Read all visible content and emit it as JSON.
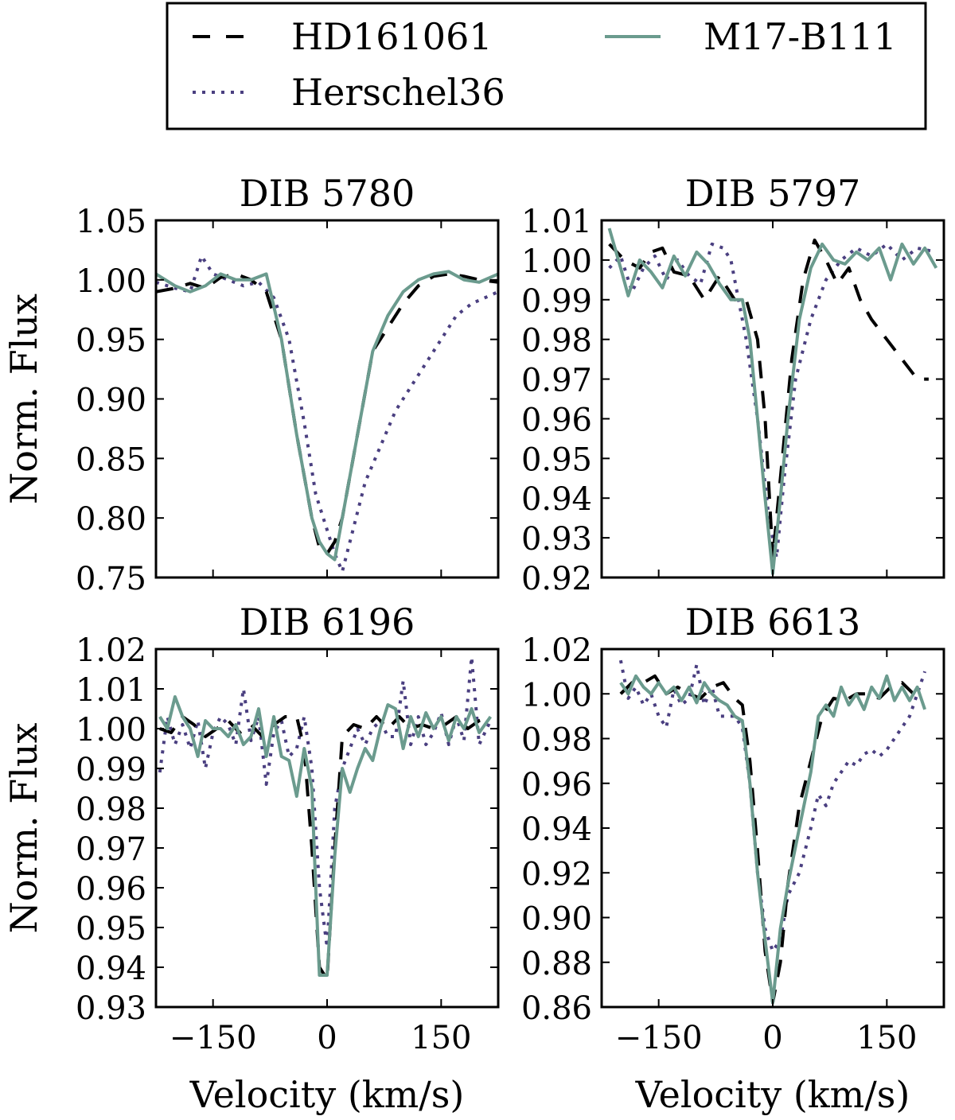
{
  "legend": {
    "entries": [
      {
        "label": "HD161061",
        "color": "#000000",
        "style": "dashed"
      },
      {
        "label": "M17-B111",
        "color": "#6b9b8e",
        "style": "solid"
      },
      {
        "label": "Herschel36",
        "color": "#4a3f80",
        "style": "dotted"
      }
    ]
  },
  "chart_data": [
    {
      "type": "line",
      "title": "DIB 5780",
      "ylabel": "Norm. Flux",
      "xlabel": "",
      "xlim": [
        -225,
        225
      ],
      "ylim": [
        0.75,
        1.05
      ],
      "xticks": [
        -150,
        0,
        150
      ],
      "show_xtick_labels": false,
      "yticks": [
        0.75,
        0.8,
        0.85,
        0.9,
        0.95,
        1.0,
        1.05
      ],
      "ytick_labels": [
        "0.75",
        "0.80",
        "0.85",
        "0.90",
        "0.95",
        "1.00",
        "1.05"
      ],
      "series": [
        {
          "name": "HD161061",
          "x": [
            -225,
            -200,
            -180,
            -160,
            -140,
            -120,
            -100,
            -80,
            -60,
            -40,
            -20,
            -10,
            0,
            10,
            20,
            40,
            60,
            80,
            100,
            120,
            140,
            160,
            180,
            200,
            225
          ],
          "y": [
            0.99,
            0.993,
            0.997,
            0.993,
            1.002,
            1.005,
            1.0,
            0.99,
            0.95,
            0.87,
            0.8,
            0.775,
            0.77,
            0.78,
            0.8,
            0.87,
            0.94,
            0.96,
            0.98,
            0.995,
            1.003,
            1.005,
            1.003,
            1.0,
            0.998
          ]
        },
        {
          "name": "M17-B111",
          "x": [
            -225,
            -200,
            -180,
            -160,
            -140,
            -120,
            -100,
            -80,
            -60,
            -40,
            -20,
            -10,
            0,
            10,
            20,
            40,
            60,
            80,
            100,
            120,
            140,
            160,
            180,
            200,
            225
          ],
          "y": [
            1.005,
            0.995,
            0.99,
            0.995,
            1.005,
            1.0,
            1.0,
            1.005,
            0.95,
            0.87,
            0.8,
            0.78,
            0.77,
            0.765,
            0.8,
            0.87,
            0.94,
            0.97,
            0.99,
            1.0,
            1.005,
            1.007,
            1.0,
            0.998,
            1.005
          ]
        },
        {
          "name": "Herschel36",
          "x": [
            -225,
            -200,
            -180,
            -165,
            -150,
            -130,
            -110,
            -90,
            -70,
            -50,
            -30,
            -15,
            0,
            10,
            20,
            30,
            50,
            70,
            90,
            110,
            130,
            150,
            170,
            190,
            225
          ],
          "y": [
            0.998,
            0.993,
            0.99,
            1.02,
            1.005,
            1.0,
            0.995,
            0.998,
            0.985,
            0.95,
            0.88,
            0.82,
            0.79,
            0.77,
            0.755,
            0.78,
            0.83,
            0.86,
            0.89,
            0.91,
            0.93,
            0.95,
            0.97,
            0.98,
            0.99
          ]
        }
      ]
    },
    {
      "type": "line",
      "title": "DIB 5797",
      "ylabel": "",
      "xlabel": "",
      "xlim": [
        -225,
        225
      ],
      "ylim": [
        0.92,
        1.01
      ],
      "xticks": [
        -150,
        0,
        150
      ],
      "show_xtick_labels": false,
      "yticks": [
        0.92,
        0.93,
        0.94,
        0.95,
        0.96,
        0.97,
        0.98,
        0.99,
        1.0,
        1.01
      ],
      "ytick_labels": [
        "0.92",
        "0.93",
        "0.94",
        "0.95",
        "0.96",
        "0.97",
        "0.98",
        "0.99",
        "1.00",
        "1.01"
      ],
      "series": [
        {
          "name": "HD161061",
          "x": [
            -215,
            -195,
            -175,
            -160,
            -145,
            -130,
            -110,
            -90,
            -70,
            -50,
            -35,
            -20,
            -10,
            0,
            10,
            25,
            40,
            55,
            70,
            85,
            100,
            115,
            130,
            150,
            170,
            190,
            205
          ],
          "y": [
            1.004,
            1.0,
            0.998,
            1.002,
            1.003,
            0.997,
            0.996,
            0.99,
            0.996,
            0.99,
            0.99,
            0.98,
            0.96,
            0.925,
            0.945,
            0.975,
            0.995,
            1.005,
            1.0,
            0.994,
            0.998,
            0.99,
            0.985,
            0.98,
            0.975,
            0.97,
            0.97
          ]
        },
        {
          "name": "M17-B111",
          "x": [
            -215,
            -200,
            -190,
            -175,
            -160,
            -145,
            -130,
            -115,
            -100,
            -85,
            -70,
            -55,
            -40,
            -30,
            -20,
            -10,
            0,
            10,
            20,
            35,
            50,
            65,
            80,
            95,
            110,
            125,
            140,
            155,
            170,
            185,
            200,
            215
          ],
          "y": [
            1.008,
            0.998,
            0.991,
            1.0,
            0.997,
            0.993,
            1.001,
            0.996,
            1.002,
            0.999,
            0.994,
            0.99,
            0.99,
            0.98,
            0.96,
            0.94,
            0.921,
            0.94,
            0.96,
            0.985,
            0.998,
            1.004,
            1.0,
            0.999,
            1.002,
            1.0,
            1.003,
            0.995,
            1.004,
            0.999,
            1.003,
            0.998
          ]
        },
        {
          "name": "Herschel36",
          "x": [
            -215,
            -200,
            -185,
            -170,
            -155,
            -140,
            -125,
            -110,
            -95,
            -80,
            -65,
            -55,
            -45,
            -35,
            -20,
            -5,
            5,
            15,
            30,
            50,
            70,
            90,
            110,
            130,
            150,
            170,
            190,
            215
          ],
          "y": [
            0.998,
            1.001,
            0.992,
            0.998,
            1.001,
            0.995,
            1.0,
            0.996,
            0.994,
            1.004,
            1.003,
            1.0,
            0.99,
            0.98,
            0.96,
            0.935,
            0.925,
            0.945,
            0.97,
            0.985,
            0.995,
            1.0,
            1.003,
            1.001,
            1.004,
            1.0,
            1.003,
            1.002
          ]
        }
      ]
    },
    {
      "type": "line",
      "title": "DIB 6196",
      "ylabel": "Norm. Flux",
      "xlabel": "Velocity (km/s)",
      "xlim": [
        -225,
        225
      ],
      "ylim": [
        0.93,
        1.02
      ],
      "xticks": [
        -150,
        0,
        150
      ],
      "show_xtick_labels": true,
      "xtick_labels": [
        "−150",
        "0",
        "150"
      ],
      "yticks": [
        0.93,
        0.94,
        0.95,
        0.96,
        0.97,
        0.98,
        0.99,
        1.0,
        1.01,
        1.02
      ],
      "ytick_labels": [
        "0.93",
        "0.94",
        "0.95",
        "0.96",
        "0.97",
        "0.98",
        "0.99",
        "1.00",
        "1.01",
        "1.02"
      ],
      "series": [
        {
          "name": "HD161061",
          "x": [
            -220,
            -205,
            -190,
            -175,
            -160,
            -145,
            -130,
            -115,
            -100,
            -85,
            -70,
            -55,
            -40,
            -30,
            -20,
            -10,
            0,
            10,
            20,
            35,
            50,
            65,
            80,
            95,
            110,
            125,
            140,
            155,
            170,
            185,
            200,
            215
          ],
          "y": [
            1.0,
            0.999,
            1.003,
            1.001,
            0.998,
            1.0,
            1.002,
            0.999,
            1.001,
            0.998,
            1.001,
            1.003,
            1.003,
            0.995,
            0.97,
            0.94,
            0.937,
            0.97,
            0.998,
            1.001,
            1.0,
            1.003,
            1.0,
            1.003,
            1.0,
            1.001,
            1.0,
            1.001,
            1.003,
            1.0,
            1.002,
            1.003
          ]
        },
        {
          "name": "M17-B111",
          "x": [
            -220,
            -210,
            -200,
            -190,
            -180,
            -170,
            -160,
            -150,
            -140,
            -130,
            -120,
            -110,
            -100,
            -90,
            -80,
            -70,
            -60,
            -50,
            -40,
            -30,
            -20,
            -15,
            -10,
            0,
            10,
            20,
            30,
            40,
            50,
            60,
            70,
            80,
            90,
            100,
            110,
            120,
            130,
            140,
            150,
            160,
            170,
            180,
            190,
            200,
            215
          ],
          "y": [
            1.003,
            1.0,
            1.008,
            1.003,
            1.0,
            0.993,
            1.002,
            1.0,
            1.0,
            0.998,
            1.001,
            0.996,
            0.998,
            1.005,
            0.993,
            1.003,
            0.993,
            0.992,
            0.983,
            0.995,
            0.985,
            0.96,
            0.938,
            0.938,
            0.968,
            0.99,
            0.984,
            0.99,
            0.995,
            0.992,
            1.0,
            1.006,
            1.005,
            0.995,
            1.003,
            0.998,
            1.004,
            1.0,
            1.003,
            0.997,
            1.003,
            1.0,
            1.005,
            0.999,
            1.003
          ]
        },
        {
          "name": "Herschel36",
          "x": [
            -220,
            -210,
            -200,
            -190,
            -180,
            -170,
            -160,
            -150,
            -140,
            -130,
            -120,
            -110,
            -100,
            -90,
            -80,
            -70,
            -60,
            -50,
            -40,
            -30,
            -20,
            -10,
            0,
            10,
            20,
            30,
            40,
            50,
            60,
            70,
            80,
            90,
            100,
            110,
            120,
            130,
            140,
            150,
            160,
            170,
            180,
            190,
            200,
            215
          ],
          "y": [
            0.989,
            1.003,
            0.996,
            1.001,
            0.995,
            1.002,
            0.99,
            0.999,
            1.003,
            1.001,
            0.996,
            1.01,
            0.997,
            1.003,
            0.986,
            0.999,
            1.002,
            0.993,
            0.995,
            1.003,
            0.99,
            0.96,
            0.945,
            0.98,
            0.99,
            0.995,
            1.0,
            0.996,
            1.0,
            1.002,
            0.998,
            0.998,
            1.012,
            0.996,
            1.003,
            0.996,
            0.999,
            1.004,
            0.996,
            1.003,
            0.997,
            1.018,
            0.996,
            1.002
          ]
        }
      ]
    },
    {
      "type": "line",
      "title": "DIB 6613",
      "ylabel": "",
      "xlabel": "Velocity (km/s)",
      "xlim": [
        -225,
        225
      ],
      "ylim": [
        0.86,
        1.02
      ],
      "xticks": [
        -150,
        0,
        150
      ],
      "show_xtick_labels": true,
      "xtick_labels": [
        "−150",
        "0",
        "150"
      ],
      "yticks": [
        0.86,
        0.88,
        0.9,
        0.92,
        0.94,
        0.96,
        0.98,
        1.0,
        1.02
      ],
      "ytick_labels": [
        "0.86",
        "0.88",
        "0.90",
        "0.92",
        "0.94",
        "0.96",
        "0.98",
        "1.00",
        "1.02"
      ],
      "series": [
        {
          "name": "HD161061",
          "x": [
            -200,
            -185,
            -170,
            -155,
            -140,
            -125,
            -110,
            -95,
            -80,
            -65,
            -50,
            -40,
            -30,
            -20,
            -10,
            0,
            10,
            20,
            35,
            50,
            65,
            80,
            95,
            110,
            125,
            140,
            155,
            170,
            185,
            200
          ],
          "y": [
            1.0,
            1.005,
            1.005,
            1.008,
            1.0,
            1.003,
            1.0,
            0.998,
            1.003,
            1.005,
            0.998,
            0.995,
            0.97,
            0.93,
            0.885,
            0.862,
            0.88,
            0.915,
            0.95,
            0.97,
            0.99,
            0.998,
            0.997,
            1.0,
            1.0,
            0.998,
            1.003,
            1.005,
            1.0,
            0.998
          ]
        },
        {
          "name": "M17-B111",
          "x": [
            -200,
            -190,
            -180,
            -170,
            -160,
            -150,
            -140,
            -130,
            -120,
            -110,
            -100,
            -90,
            -80,
            -70,
            -60,
            -50,
            -40,
            -30,
            -20,
            -10,
            0,
            10,
            20,
            35,
            50,
            60,
            70,
            80,
            90,
            100,
            110,
            120,
            130,
            140,
            150,
            160,
            170,
            180,
            190,
            200
          ],
          "y": [
            1.005,
            1.0,
            1.008,
            1.003,
            1.0,
            1.005,
            1.0,
            1.003,
            0.997,
            1.003,
            0.996,
            1.005,
            1.0,
            0.997,
            0.995,
            0.99,
            0.988,
            0.96,
            0.92,
            0.89,
            0.862,
            0.895,
            0.915,
            0.94,
            0.965,
            0.99,
            0.995,
            0.99,
            1.003,
            0.995,
            1.0,
            0.993,
            1.003,
            0.998,
            1.008,
            0.997,
            1.003,
            0.997,
            1.003,
            0.993
          ]
        },
        {
          "name": "Herschel36",
          "x": [
            -200,
            -190,
            -180,
            -170,
            -160,
            -150,
            -140,
            -130,
            -120,
            -110,
            -100,
            -90,
            -80,
            -70,
            -60,
            -50,
            -40,
            -30,
            -20,
            -10,
            0,
            10,
            20,
            35,
            50,
            60,
            70,
            80,
            90,
            100,
            110,
            120,
            130,
            140,
            150,
            160,
            170,
            180,
            190,
            200
          ],
          "y": [
            1.015,
            0.998,
            1.003,
            0.995,
            1.0,
            0.99,
            0.985,
            1.002,
            0.995,
            0.998,
            1.013,
            0.995,
            1.003,
            0.99,
            0.99,
            0.99,
            0.985,
            0.96,
            0.92,
            0.895,
            0.885,
            0.89,
            0.91,
            0.92,
            0.94,
            0.955,
            0.95,
            0.96,
            0.965,
            0.97,
            0.968,
            0.973,
            0.975,
            0.972,
            0.975,
            0.98,
            0.985,
            0.99,
            1.0,
            1.01
          ]
        }
      ]
    }
  ]
}
